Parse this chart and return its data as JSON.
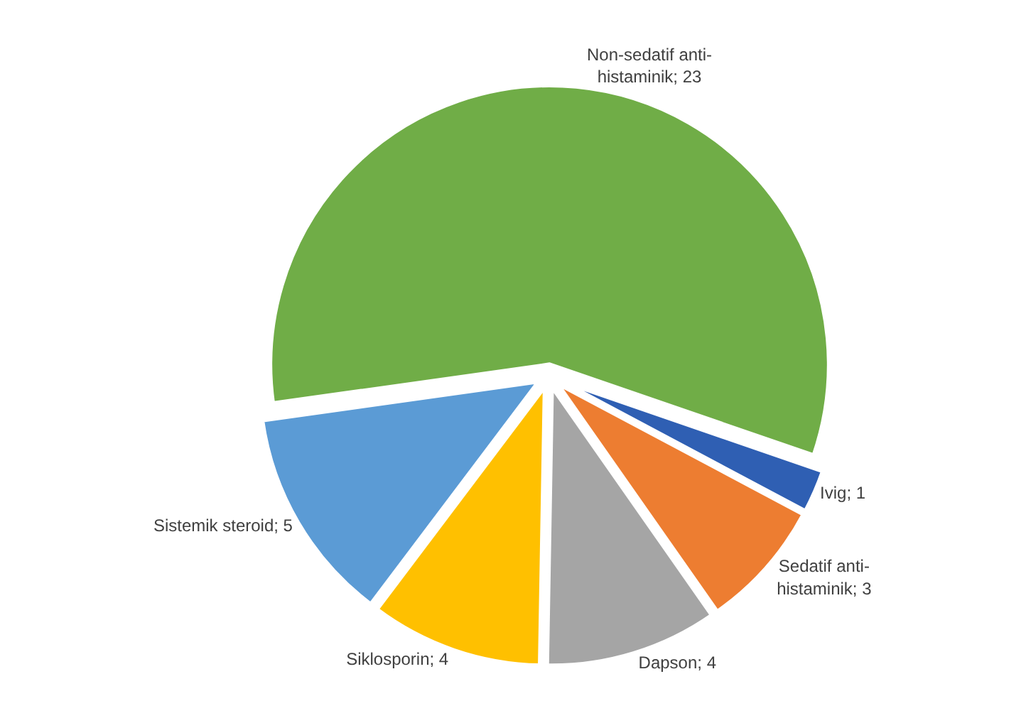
{
  "chart_data": {
    "type": "pie",
    "categories": [
      "Non-sedatif anti-histaminik; 23",
      "Ivig; 1",
      "Sedatif anti-histaminik; 3",
      "Dapson; 4",
      "Siklosporin; 4",
      "Sistemik steroid; 5"
    ],
    "values": [
      23,
      1,
      3,
      4,
      4,
      5
    ],
    "colors": [
      "#70ad47",
      "#2f5fb3",
      "#ed7d31",
      "#a5a5a5",
      "#ffc000",
      "#5b9bd5"
    ],
    "legend": false
  }
}
